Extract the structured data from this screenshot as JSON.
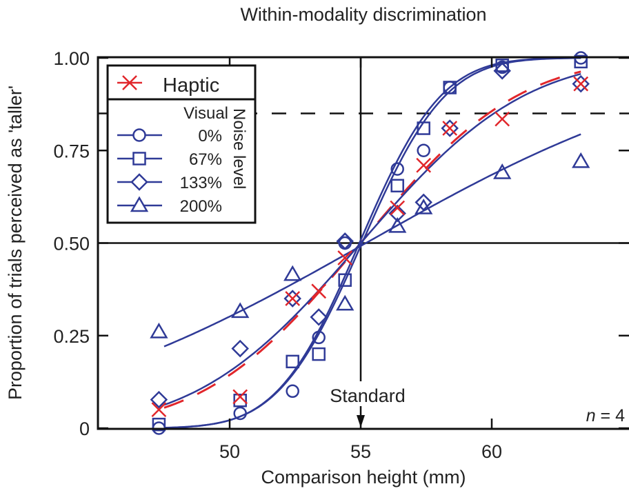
{
  "chart_data": {
    "type": "scatter",
    "title": "Within-modality discrimination",
    "xlabel": "Comparison height (mm)",
    "ylabel": "Proportion of trials perceived as 'taller'",
    "xlim": [
      45,
      65.2
    ],
    "ylim": [
      0,
      1
    ],
    "x_ticks": [
      "50",
      "55",
      "60"
    ],
    "x_tick_values": [
      50,
      55,
      60
    ],
    "y_ticks": [
      "0",
      "0.25",
      "0.50",
      "0.75",
      "1.00"
    ],
    "y_tick_values": [
      0,
      0.25,
      0.5,
      0.75,
      1.0
    ],
    "grid": false,
    "legend_position": "top-left",
    "legend": {
      "haptic": "Haptic",
      "visual_heading": "Visual",
      "noise_title": "Noise level",
      "entries": [
        "0%",
        "67%",
        "133%",
        "200%"
      ]
    },
    "reference_lines": {
      "horizontal_solid": 0.5,
      "horizontal_dashed": 0.85,
      "vertical_standard": 55
    },
    "standard_label": "Standard",
    "n_label": {
      "n": "n",
      "rest": " = 4"
    },
    "colors": {
      "visual": "#2f3a97",
      "haptic": "#e1262b"
    },
    "series": [
      {
        "name": "Haptic",
        "marker": "x",
        "color": "#e1262b",
        "fit": "dashed",
        "x": [
          47.3,
          50.4,
          52.4,
          53.4,
          54.4,
          56.4,
          57.4,
          58.4,
          60.4,
          63.4
        ],
        "y": [
          0.05,
          0.085,
          0.35,
          0.37,
          0.46,
          0.595,
          0.71,
          0.81,
          0.835,
          0.93
        ]
      },
      {
        "name": "0%",
        "marker": "circle",
        "color": "#2f3a97",
        "fit": "solid",
        "x": [
          47.3,
          50.4,
          52.4,
          53.4,
          54.4,
          56.4,
          57.4,
          58.4,
          60.4,
          63.4
        ],
        "y": [
          0.0,
          0.04,
          0.1,
          0.245,
          0.5,
          0.7,
          0.75,
          0.92,
          0.975,
          1.0
        ]
      },
      {
        "name": "67%",
        "marker": "square",
        "color": "#2f3a97",
        "fit": "solid",
        "x": [
          47.3,
          50.4,
          52.4,
          53.4,
          54.4,
          56.4,
          57.4,
          58.4,
          60.4,
          63.4
        ],
        "y": [
          0.01,
          0.075,
          0.18,
          0.2,
          0.4,
          0.655,
          0.81,
          0.92,
          0.98,
          0.99
        ]
      },
      {
        "name": "133%",
        "marker": "diamond",
        "color": "#2f3a97",
        "fit": "solid",
        "x": [
          47.3,
          50.4,
          52.4,
          53.4,
          54.4,
          56.4,
          57.4,
          58.4,
          60.4,
          63.4
        ],
        "y": [
          0.077,
          0.215,
          0.35,
          0.3,
          0.505,
          0.58,
          0.61,
          0.81,
          0.965,
          0.93
        ]
      },
      {
        "name": "200%",
        "marker": "triangle",
        "color": "#2f3a97",
        "fit": "solid",
        "x": [
          47.3,
          50.4,
          52.4,
          54.4,
          56.4,
          57.4,
          60.4,
          63.4
        ],
        "y": [
          0.26,
          0.315,
          0.415,
          0.335,
          0.545,
          0.595,
          0.69,
          0.72
        ]
      }
    ]
  }
}
